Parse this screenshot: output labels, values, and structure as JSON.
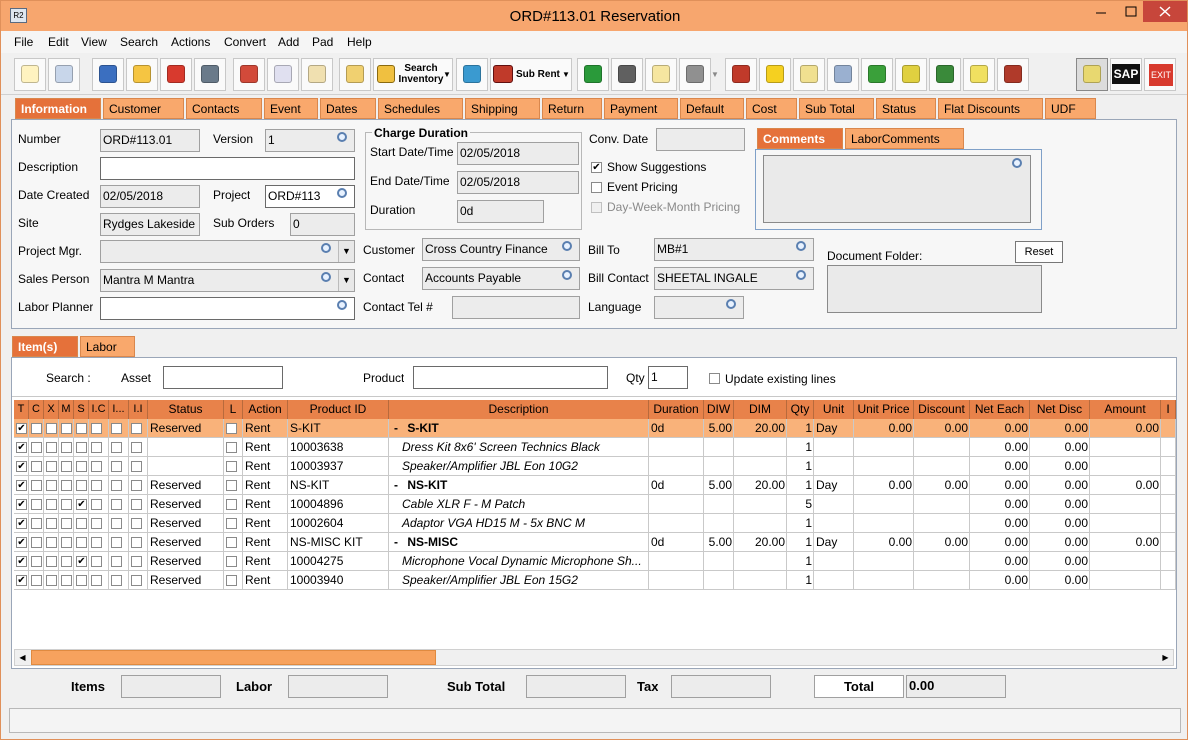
{
  "window": {
    "title": "ORD#113.01 Reservation"
  },
  "menu": [
    "File",
    "Edit",
    "View",
    "Search",
    "Actions",
    "Convert",
    "Add",
    "Pad",
    "Help"
  ],
  "toolbar": {
    "search_inventory": "Search Inventory",
    "sub_rent": "Sub Rent",
    "sap": "SAP",
    "exit": "EXIT"
  },
  "tabs": [
    "Information",
    "Customer",
    "Contacts",
    "Event",
    "Dates",
    "Schedules",
    "Shipping",
    "Return",
    "Payment",
    "Default",
    "Cost",
    "Sub Total",
    "Status",
    "Flat Discounts",
    "UDF"
  ],
  "information": {
    "number": {
      "label": "Number",
      "value": "ORD#113.01"
    },
    "version": {
      "label": "Version",
      "value": "1"
    },
    "description": {
      "label": "Description"
    },
    "date_created": {
      "label": "Date Created",
      "value": "02/05/2018"
    },
    "project": {
      "label": "Project",
      "value": "ORD#113"
    },
    "site": {
      "label": "Site",
      "value": "Rydges Lakeside"
    },
    "sub_orders": {
      "label": "Sub Orders",
      "value": "0"
    },
    "project_mgr": {
      "label": "Project Mgr."
    },
    "sales_person": {
      "label": "Sales Person",
      "value": "Mantra M Mantra"
    },
    "labor_planner": {
      "label": "Labor Planner"
    },
    "charge_duration": {
      "title": "Charge Duration",
      "start": {
        "label": "Start Date/Time",
        "value": "02/05/2018"
      },
      "end": {
        "label": "End Date/Time",
        "value": "02/05/2018"
      },
      "duration": {
        "label": "Duration",
        "value": "0d"
      }
    },
    "customer": {
      "label": "Customer",
      "value": "Cross Country Finance"
    },
    "contact": {
      "label": "Contact",
      "value": "Accounts Payable"
    },
    "contact_tel": {
      "label": "Contact Tel #"
    },
    "conv_date": {
      "label": "Conv. Date"
    },
    "options": [
      {
        "label": "Show Suggestions",
        "checked": true,
        "disabled": false
      },
      {
        "label": "Event Pricing",
        "checked": false,
        "disabled": false
      },
      {
        "label": "Day-Week-Month Pricing",
        "checked": false,
        "disabled": true
      }
    ],
    "bill_to": {
      "label": "Bill To",
      "value": "MB#1"
    },
    "bill_contact": {
      "label": "Bill Contact",
      "value": "SHEETAL INGALE"
    },
    "language": {
      "label": "Language"
    },
    "comment_tabs": [
      "Comments",
      "LaborComments"
    ],
    "document_folder": {
      "label": "Document Folder:",
      "button": "Reset"
    }
  },
  "item_tabs": [
    "Item(s)",
    "Labor"
  ],
  "search_row": {
    "label": "Search :",
    "asset": "Asset",
    "product": "Product",
    "qty_label": "Qty",
    "qty": "1",
    "update_label": "Update existing lines",
    "update_checked": false
  },
  "table": {
    "headers": [
      "T",
      "C",
      "X",
      "M",
      "S",
      "I.C",
      "I...",
      "I.I",
      "Status",
      "L",
      "Action",
      "Product ID",
      "Description",
      "Duration",
      "DIW",
      "DIM",
      "Qty",
      "Unit",
      "Unit Price",
      "Discount",
      "Net Each",
      "Net Disc",
      "Amount",
      "I"
    ],
    "rows": [
      {
        "kit": true,
        "selected": true,
        "checks": [
          true,
          false,
          false,
          false,
          false,
          false,
          false,
          false,
          false
        ],
        "cells": [
          "Reserved",
          "Rent",
          "S-KIT",
          "- S-KIT",
          "0d",
          "5.00",
          "20.00",
          "1",
          "Day",
          "0.00",
          "0.00",
          "0.00",
          "0.00",
          "0.00"
        ]
      },
      {
        "kit": false,
        "selected": false,
        "checks": [
          true,
          false,
          false,
          false,
          false,
          false,
          false,
          false,
          false
        ],
        "cells": [
          null,
          "Rent",
          "10003638",
          "Dress Kit 8x6' Screen Technics Black",
          null,
          null,
          null,
          "1",
          null,
          null,
          null,
          "0.00",
          "0.00",
          null
        ]
      },
      {
        "kit": false,
        "selected": false,
        "checks": [
          true,
          false,
          false,
          false,
          false,
          false,
          false,
          false,
          false
        ],
        "cells": [
          null,
          "Rent",
          "10003937",
          "Speaker/Amplifier JBL Eon 10G2",
          null,
          null,
          null,
          "1",
          null,
          null,
          null,
          "0.00",
          "0.00",
          null
        ]
      },
      {
        "kit": true,
        "selected": false,
        "checks": [
          true,
          false,
          false,
          false,
          false,
          false,
          false,
          false,
          false
        ],
        "cells": [
          "Reserved",
          "Rent",
          "NS-KIT",
          "- NS-KIT",
          "0d",
          "5.00",
          "20.00",
          "1",
          "Day",
          "0.00",
          "0.00",
          "0.00",
          "0.00",
          "0.00"
        ]
      },
      {
        "kit": false,
        "selected": false,
        "checks": [
          true,
          false,
          false,
          false,
          true,
          false,
          false,
          false,
          false
        ],
        "cells": [
          "Reserved",
          "Rent",
          "10004896",
          "Cable XLR F - M Patch",
          null,
          null,
          null,
          "5",
          null,
          null,
          null,
          "0.00",
          "0.00",
          null
        ]
      },
      {
        "kit": false,
        "selected": false,
        "checks": [
          true,
          false,
          false,
          false,
          false,
          false,
          false,
          false,
          false
        ],
        "cells": [
          "Reserved",
          "Rent",
          "10002604",
          "Adaptor VGA HD15 M - 5x BNC M",
          null,
          null,
          null,
          "1",
          null,
          null,
          null,
          "0.00",
          "0.00",
          null
        ]
      },
      {
        "kit": true,
        "selected": false,
        "checks": [
          true,
          false,
          false,
          false,
          false,
          false,
          false,
          false,
          false
        ],
        "cells": [
          "Reserved",
          "Rent",
          "NS-MISC KIT",
          "- NS-MISC",
          "0d",
          "5.00",
          "20.00",
          "1",
          "Day",
          "0.00",
          "0.00",
          "0.00",
          "0.00",
          "0.00"
        ]
      },
      {
        "kit": false,
        "selected": false,
        "checks": [
          true,
          false,
          false,
          false,
          true,
          false,
          false,
          false,
          false
        ],
        "cells": [
          "Reserved",
          "Rent",
          "10004275",
          "Microphone Vocal Dynamic Microphone Sh...",
          null,
          null,
          null,
          "1",
          null,
          null,
          null,
          "0.00",
          "0.00",
          null
        ]
      },
      {
        "kit": false,
        "selected": false,
        "checks": [
          true,
          false,
          false,
          false,
          false,
          false,
          false,
          false,
          false
        ],
        "cells": [
          "Reserved",
          "Rent",
          "10003940",
          "Speaker/Amplifier JBL Eon 15G2",
          null,
          null,
          null,
          "1",
          null,
          null,
          null,
          "0.00",
          "0.00",
          null
        ]
      }
    ]
  },
  "footer": {
    "items": "Items",
    "labor": "Labor",
    "sub_total": "Sub Total",
    "tax": "Tax",
    "total": "Total",
    "total_value": "0.00"
  }
}
